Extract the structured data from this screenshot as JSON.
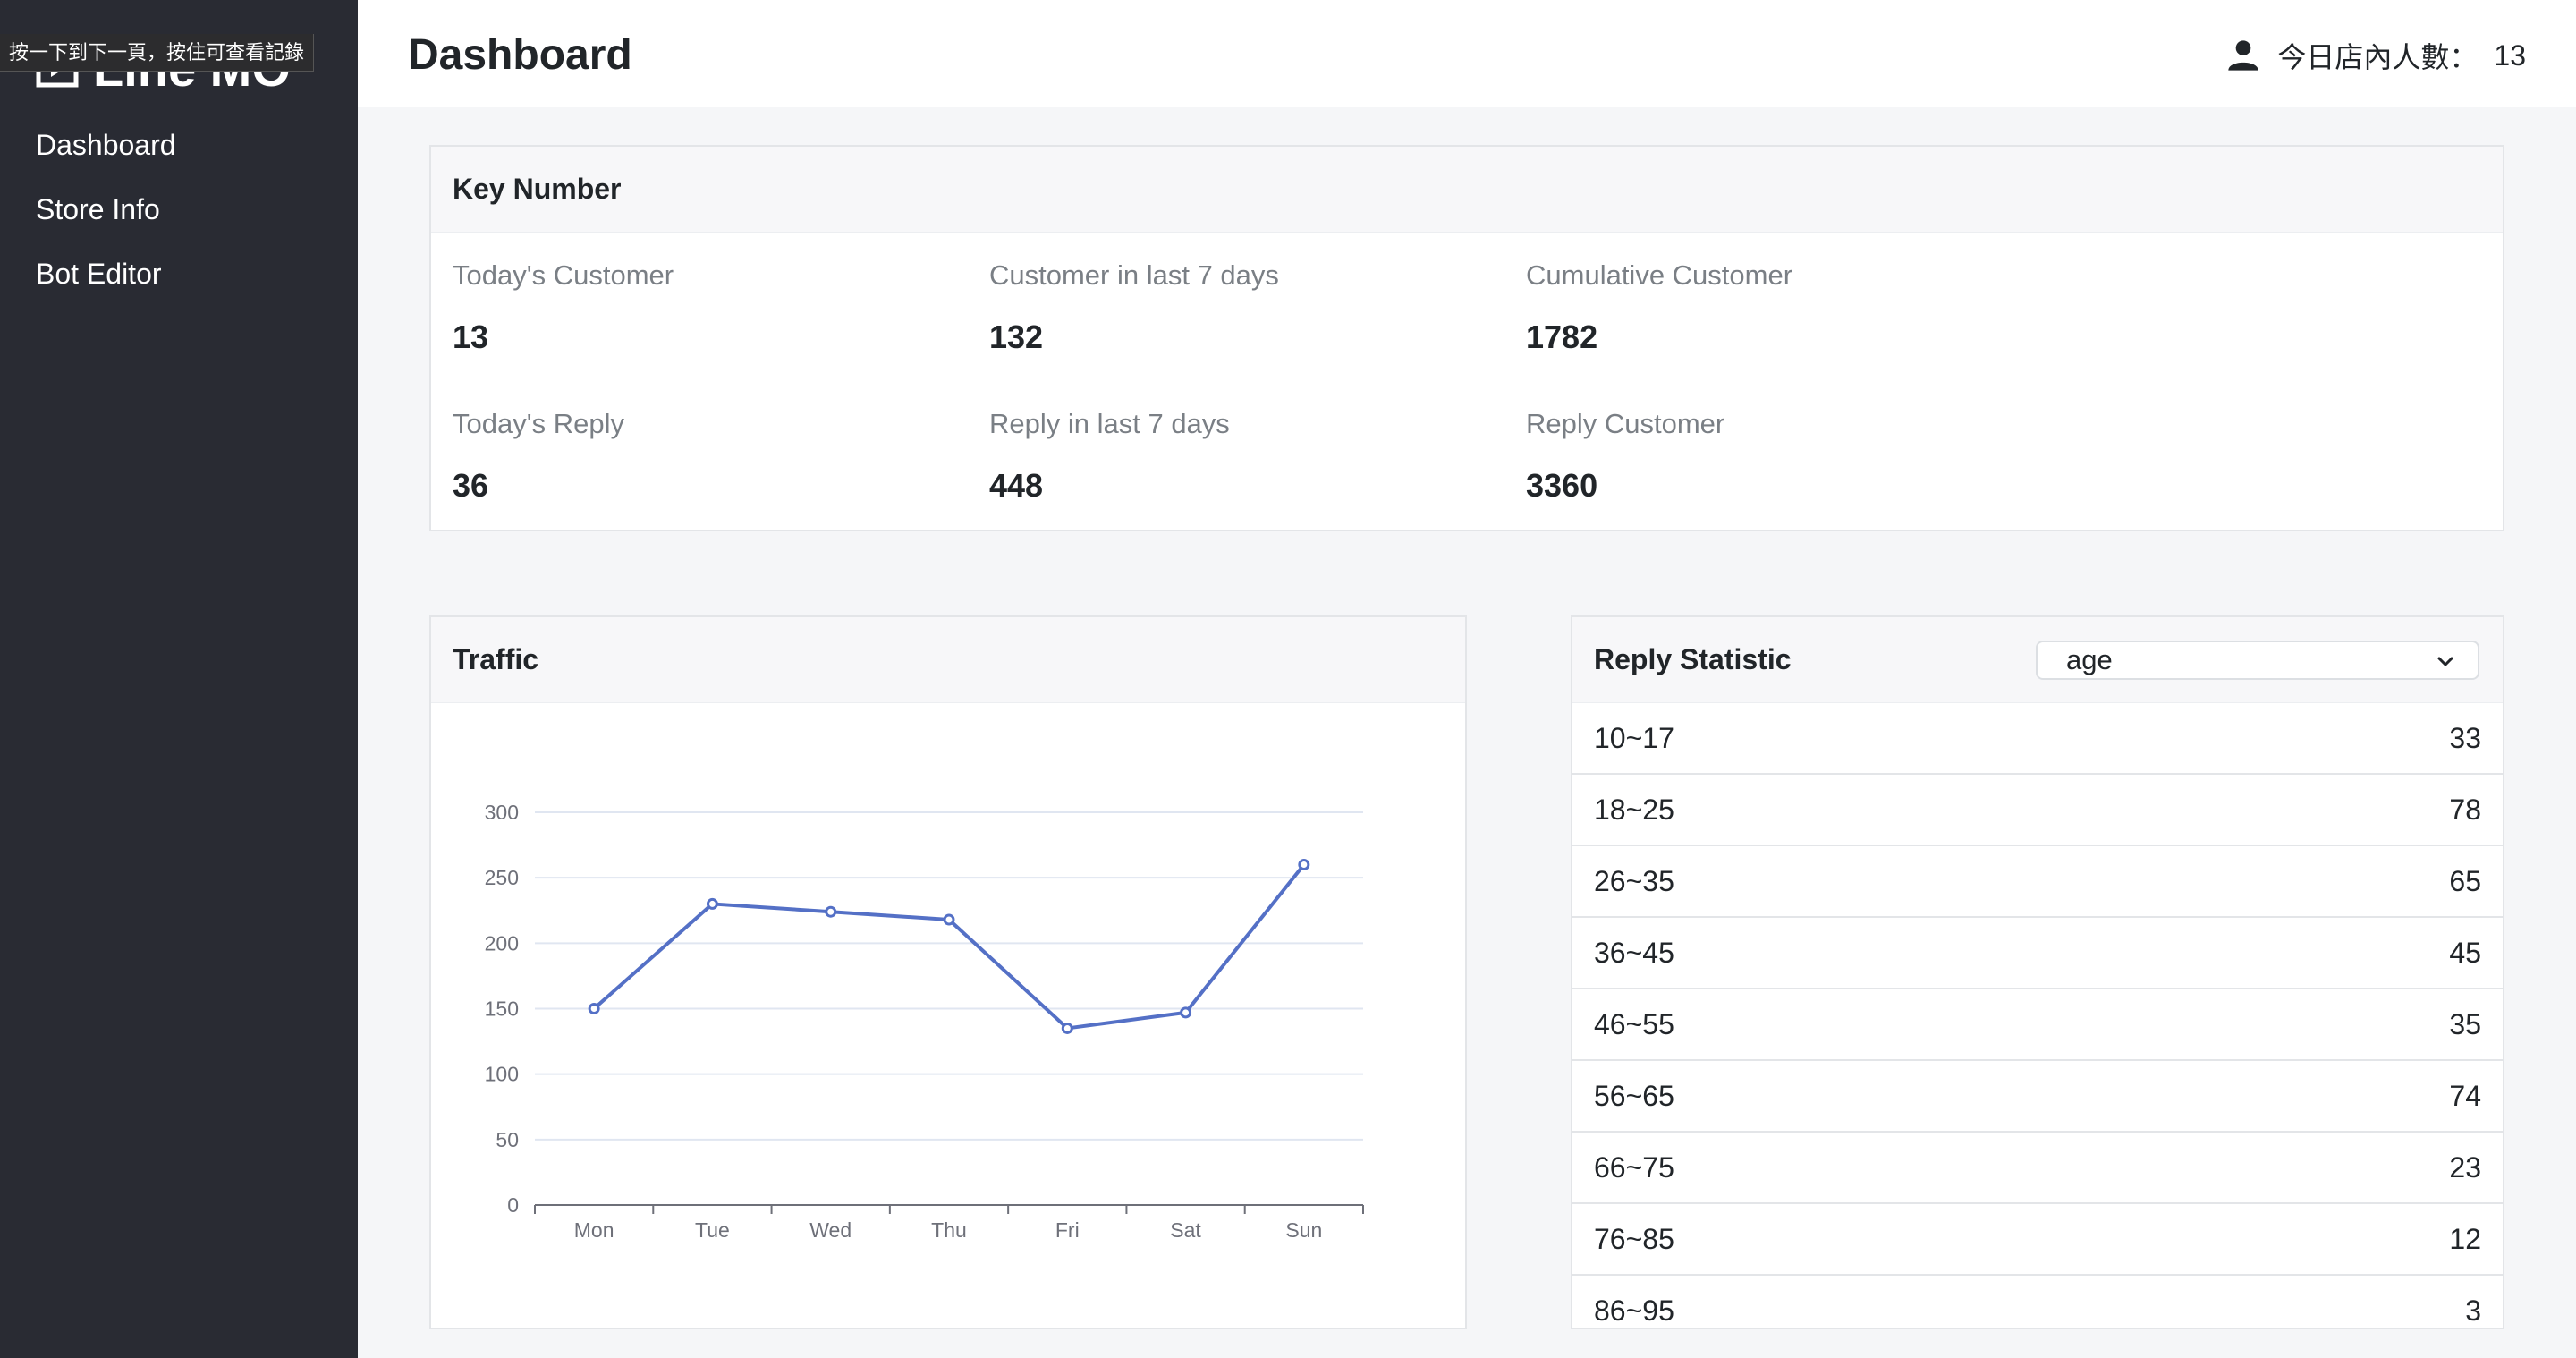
{
  "tooltip": "按一下到下一頁，按住可查看記錄",
  "brand": {
    "name": "Line MO"
  },
  "sidebar": {
    "items": [
      {
        "label": "Dashboard"
      },
      {
        "label": "Store Info"
      },
      {
        "label": "Bot Editor"
      }
    ]
  },
  "header": {
    "title": "Dashboard",
    "people_label": "今日店內人數：",
    "people_count": "13"
  },
  "key_number": {
    "title": "Key Number",
    "stats": [
      {
        "label": "Today's Customer",
        "value": "13"
      },
      {
        "label": "Customer in last 7 days",
        "value": "132"
      },
      {
        "label": "Cumulative Customer",
        "value": "1782"
      },
      {
        "label": "Today's Reply",
        "value": "36"
      },
      {
        "label": "Reply in last 7 days",
        "value": "448"
      },
      {
        "label": "Reply Customer",
        "value": "3360"
      }
    ]
  },
  "traffic": {
    "title": "Traffic"
  },
  "chart_data": {
    "type": "line",
    "categories": [
      "Mon",
      "Tue",
      "Wed",
      "Thu",
      "Fri",
      "Sat",
      "Sun"
    ],
    "values": [
      150,
      230,
      224,
      218,
      135,
      147,
      260
    ],
    "yticks": [
      0,
      50,
      100,
      150,
      200,
      250,
      300
    ],
    "ylim": [
      0,
      300
    ],
    "grid": true,
    "color": "#5470c6",
    "title": "",
    "xlabel": "",
    "ylabel": ""
  },
  "reply_statistic": {
    "title": "Reply Statistic",
    "select_value": "age",
    "rows": [
      {
        "range": "10~17",
        "count": "33"
      },
      {
        "range": "18~25",
        "count": "78"
      },
      {
        "range": "26~35",
        "count": "65"
      },
      {
        "range": "36~45",
        "count": "45"
      },
      {
        "range": "46~55",
        "count": "35"
      },
      {
        "range": "56~65",
        "count": "74"
      },
      {
        "range": "66~75",
        "count": "23"
      },
      {
        "range": "76~85",
        "count": "12"
      },
      {
        "range": "86~95",
        "count": "3"
      }
    ]
  }
}
